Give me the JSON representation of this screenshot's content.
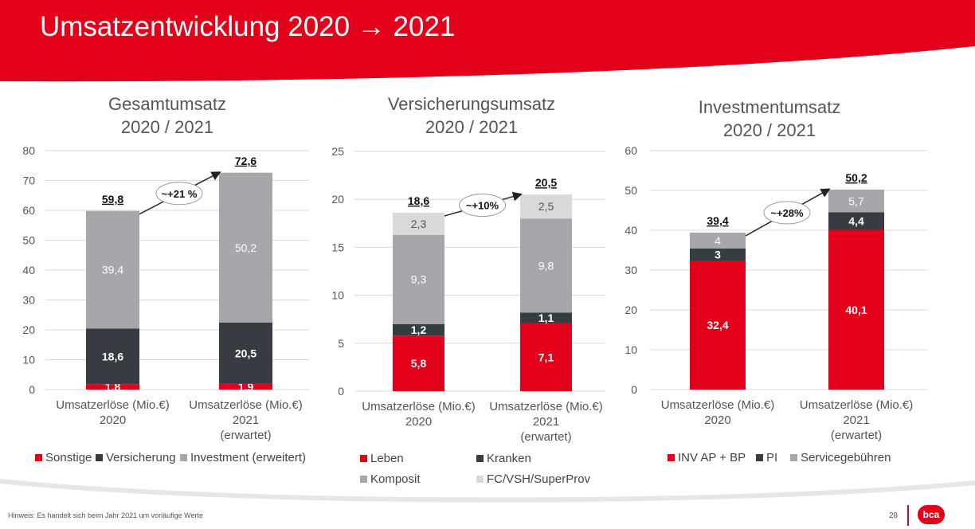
{
  "header": {
    "title": "Umsatzentwicklung 2020 → 2021"
  },
  "charts": [
    {
      "title_line1": "Gesamtumsatz",
      "title_line2": "2020 / 2021",
      "legend": [
        "Sonstige",
        "Versicherung",
        "Investment (erweitert)"
      ]
    },
    {
      "title_line1": "Versicherungsumsatz",
      "title_line2": "2020 / 2021",
      "legend": [
        "Leben",
        "Kranken",
        "Komposit",
        "FC/VSH/SuperProv"
      ]
    },
    {
      "title_line1": "Investmentumsatz",
      "title_line2": "2020 / 2021",
      "legend": [
        "INV AP + BP",
        "PI",
        "Servicegebühren"
      ]
    }
  ],
  "chart_data": [
    {
      "type": "bar",
      "title": "Gesamtumsatz 2020 / 2021",
      "categories": [
        [
          "Umsatzerlöse (Mio.€)",
          "2020"
        ],
        [
          "Umsatzerlöse (Mio.€)",
          "2021",
          "(erwartet)"
        ]
      ],
      "series": [
        {
          "name": "Sonstige",
          "color": "#e2001a",
          "values": [
            1.8,
            1.9
          ],
          "labels": [
            "1,8",
            "1,9"
          ]
        },
        {
          "name": "Versicherung",
          "color": "#373c43",
          "values": [
            18.6,
            20.5
          ],
          "labels": [
            "18,6",
            "20,5"
          ]
        },
        {
          "name": "Investment (erweitert)",
          "color": "#a7a7ab",
          "values": [
            39.4,
            50.2
          ],
          "labels": [
            "39,4",
            "50,2"
          ]
        }
      ],
      "totals": [
        "59,8",
        "72,6"
      ],
      "total_values": [
        59.8,
        72.6
      ],
      "growth": "~+21 %",
      "ylim": [
        0,
        80
      ],
      "yticks": [
        0,
        10,
        20,
        30,
        40,
        50,
        60,
        70,
        80
      ],
      "grid": true,
      "legend_position": "bottom"
    },
    {
      "type": "bar",
      "title": "Versicherungsumsatz 2020 / 2021",
      "categories": [
        [
          "Umsatzerlöse (Mio.€)",
          "2020"
        ],
        [
          "Umsatzerlöse (Mio.€)",
          "2021",
          "(erwartet)"
        ]
      ],
      "series": [
        {
          "name": "Leben",
          "color": "#e2001a",
          "values": [
            5.8,
            7.1
          ],
          "labels": [
            "5,8",
            "7,1"
          ]
        },
        {
          "name": "Kranken",
          "color": "#373c43",
          "values": [
            1.2,
            1.1
          ],
          "labels": [
            "1,2",
            "1,1"
          ]
        },
        {
          "name": "Komposit",
          "color": "#a7a7ab",
          "values": [
            9.3,
            9.8
          ],
          "labels": [
            "9,3",
            "9,8"
          ]
        },
        {
          "name": "FC/VSH/SuperProv",
          "color": "#d9d9d9",
          "values": [
            2.3,
            2.5
          ],
          "labels": [
            "2,3",
            "2,5"
          ]
        }
      ],
      "totals": [
        "18,6",
        "20,5"
      ],
      "total_values": [
        18.6,
        20.5
      ],
      "growth": "~+10%",
      "ylim": [
        0,
        25
      ],
      "yticks": [
        0,
        5,
        10,
        15,
        20,
        25
      ],
      "grid": true,
      "legend_position": "bottom"
    },
    {
      "type": "bar",
      "title": "Investmentumsatz 2020 / 2021",
      "categories": [
        [
          "Umsatzerlöse (Mio.€)",
          "2020"
        ],
        [
          "Umsatzerlöse (Mio.€)",
          "2021",
          "(erwartet)"
        ]
      ],
      "series": [
        {
          "name": "INV AP + BP",
          "color": "#e2001a",
          "values": [
            32.4,
            40.1
          ],
          "labels": [
            "32,4",
            "40,1"
          ]
        },
        {
          "name": "PI",
          "color": "#373c43",
          "values": [
            3,
            4.4
          ],
          "labels": [
            "3",
            "4,4"
          ]
        },
        {
          "name": "Servicegebühren",
          "color": "#a7a7ab",
          "values": [
            4,
            5.7
          ],
          "labels": [
            "4",
            "5,7"
          ]
        }
      ],
      "totals": [
        "39,4",
        "50,2"
      ],
      "total_values": [
        39.4,
        50.2
      ],
      "growth": "~+28%",
      "ylim": [
        0,
        60
      ],
      "yticks": [
        0,
        10,
        20,
        30,
        40,
        50,
        60
      ],
      "grid": true,
      "legend_position": "bottom"
    }
  ],
  "footer": {
    "note": "Hinweis:  Es handelt sich beim Jahr 2021 um vorläufige Werte",
    "page": "28",
    "logo": "bca"
  }
}
